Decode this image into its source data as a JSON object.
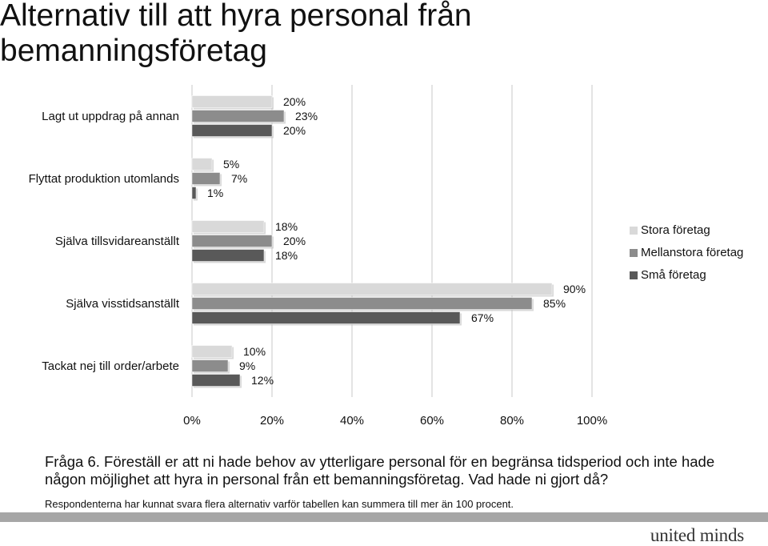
{
  "title": "Alternativ till att hyra personal från bemanningsföretag",
  "question": "Fråga 6. Föreställ er att ni hade behov av ytterligare personal för en begränsa tidsperiod och inte hade någon möjlighet att hyra in personal från ett bemanningsföretag. Vad hade ni gjort då?",
  "footnote": "Respondenterna har kunnat svara flera alternativ varför tabellen kan summera till mer än 100 procent.",
  "logo": "united minds",
  "chart_data": {
    "type": "bar",
    "orientation": "horizontal",
    "categories": [
      "Lagt ut uppdrag på annan",
      "Flyttat produktion utomlands",
      "Själva tillsvidareanställt",
      "Själva visstidsanställt",
      "Tackat nej till order/arbete"
    ],
    "series": [
      {
        "name": "Stora företag",
        "values": [
          20,
          5,
          18,
          90,
          10
        ],
        "color": "#d9d9d9"
      },
      {
        "name": "Mellanstora företag",
        "values": [
          23,
          7,
          20,
          85,
          9
        ],
        "color": "#8c8c8c"
      },
      {
        "name": "Små företag",
        "values": [
          20,
          1,
          18,
          67,
          12
        ],
        "color": "#595959"
      }
    ],
    "value_labels": [
      [
        "20%",
        "5%",
        "18%",
        "90%",
        "10%"
      ],
      [
        "23%",
        "7%",
        "20%",
        "85%",
        "9%"
      ],
      [
        "20%",
        "1%",
        "18%",
        "67%",
        "12%"
      ]
    ],
    "xlim": [
      0,
      100
    ],
    "xticks": [
      "0%",
      "20%",
      "40%",
      "60%",
      "80%",
      "100%"
    ],
    "grid": true,
    "legend_position": "right"
  }
}
